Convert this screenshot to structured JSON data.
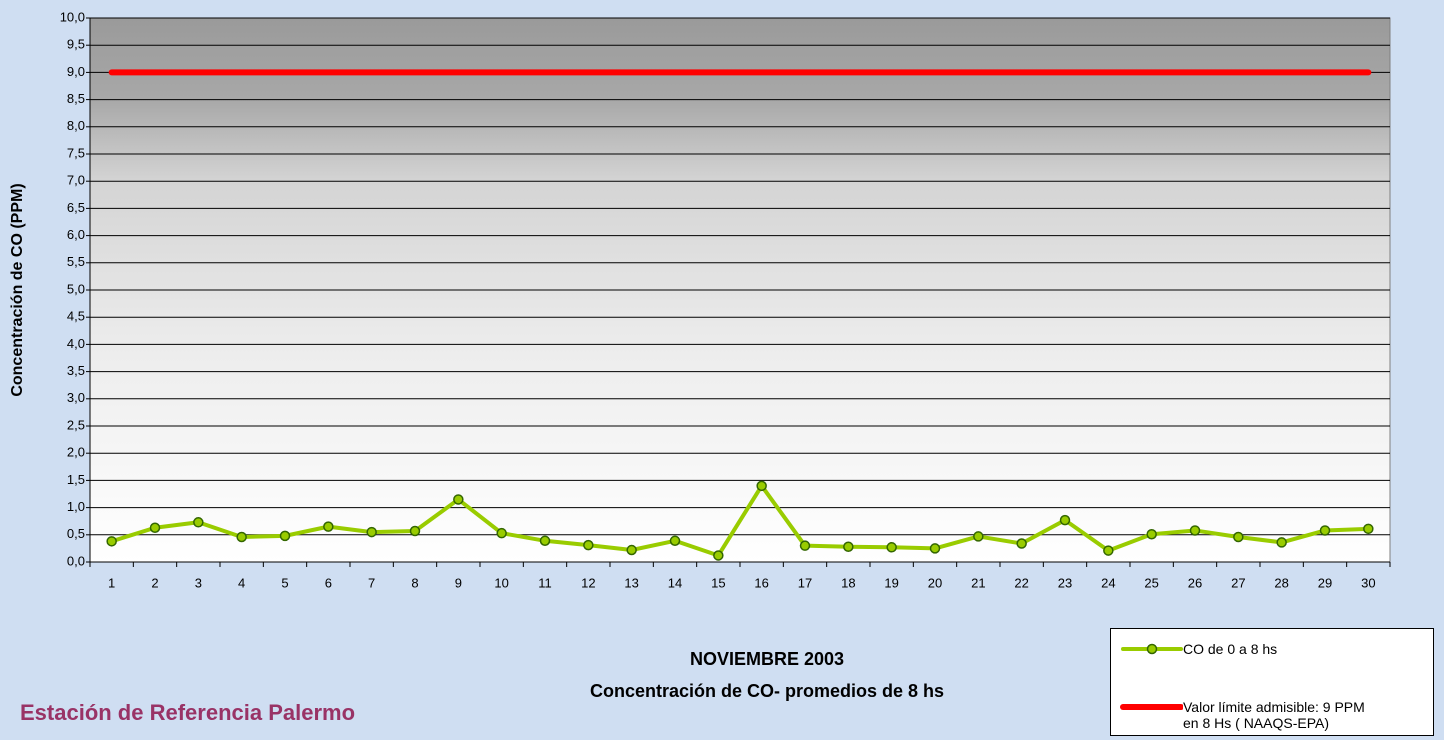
{
  "chart_data": {
    "type": "line",
    "title": "NOVIEMBRE 2003",
    "subtitle": "Concentración de CO- promedios de 8 hs",
    "station": "Estación de Referencia Palermo",
    "ylabel": "Concentración de CO (PPM)",
    "categories": [
      "1",
      "2",
      "3",
      "4",
      "5",
      "6",
      "7",
      "8",
      "9",
      "10",
      "11",
      "12",
      "13",
      "14",
      "15",
      "16",
      "17",
      "18",
      "19",
      "20",
      "21",
      "22",
      "23",
      "24",
      "25",
      "26",
      "27",
      "28",
      "29",
      "30"
    ],
    "series": [
      {
        "name": "CO de 0 a 8 hs",
        "color": "#99cc00",
        "marker": true,
        "values": [
          0.38,
          0.63,
          0.73,
          0.46,
          0.48,
          0.65,
          0.55,
          0.57,
          1.15,
          0.53,
          0.39,
          0.31,
          0.22,
          0.39,
          0.12,
          1.4,
          0.3,
          0.28,
          0.27,
          0.25,
          0.47,
          0.34,
          0.77,
          0.21,
          0.51,
          0.58,
          0.46,
          0.36,
          0.58,
          0.61
        ]
      },
      {
        "name": "Valor límite admisible: 9 PPM en 8 Hs ( NAAQS-EPA)",
        "color": "#ff0000",
        "marker": false,
        "values": [
          9,
          9,
          9,
          9,
          9,
          9,
          9,
          9,
          9,
          9,
          9,
          9,
          9,
          9,
          9,
          9,
          9,
          9,
          9,
          9,
          9,
          9,
          9,
          9,
          9,
          9,
          9,
          9,
          9,
          9
        ]
      }
    ],
    "ylim": [
      0,
      10
    ],
    "yticks": [
      {
        "value": 0,
        "label": "0,0"
      },
      {
        "value": 0.5,
        "label": "0,5"
      },
      {
        "value": 1,
        "label": "1,0"
      },
      {
        "value": 1.5,
        "label": "1,5"
      },
      {
        "value": 2,
        "label": "2,0"
      },
      {
        "value": 2.5,
        "label": "2,5"
      },
      {
        "value": 3,
        "label": "3,0"
      },
      {
        "value": 3.5,
        "label": "3,5"
      },
      {
        "value": 4,
        "label": "4,0"
      },
      {
        "value": 4.5,
        "label": "4,5"
      },
      {
        "value": 5,
        "label": "5,0"
      },
      {
        "value": 5.5,
        "label": "5,5"
      },
      {
        "value": 6,
        "label": "6,0"
      },
      {
        "value": 6.5,
        "label": "6,5"
      },
      {
        "value": 7,
        "label": "7,0"
      },
      {
        "value": 7.5,
        "label": "7,5"
      },
      {
        "value": 8,
        "label": "8,0"
      },
      {
        "value": 8.5,
        "label": "8,5"
      },
      {
        "value": 9,
        "label": "9,0"
      },
      {
        "value": 9.5,
        "label": "9,5"
      },
      {
        "value": 10,
        "label": "10,0"
      }
    ],
    "grid": true
  }
}
